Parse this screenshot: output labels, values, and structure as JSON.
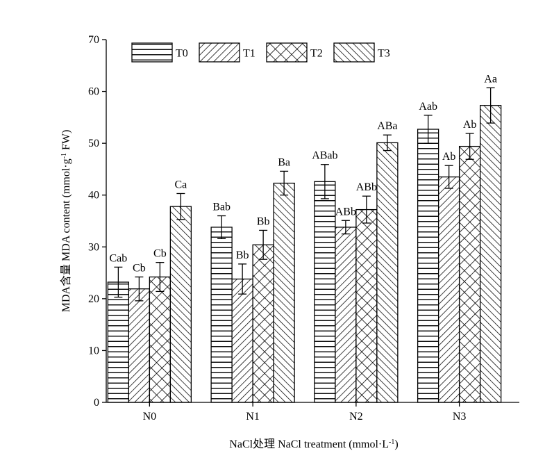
{
  "chart_data": {
    "type": "bar",
    "categories": [
      "N0",
      "N1",
      "N2",
      "N3"
    ],
    "series": [
      {
        "name": "T0",
        "pattern": "horizontal",
        "values": [
          23.2,
          33.8,
          42.6,
          52.7
        ],
        "errors": [
          2.9,
          2.2,
          3.3,
          2.7
        ],
        "labels": [
          "Cab",
          "Bab",
          "ABab",
          "Aab"
        ]
      },
      {
        "name": "T1",
        "pattern": "diagonal-up",
        "values": [
          21.9,
          23.8,
          33.8,
          43.5
        ],
        "errors": [
          2.3,
          2.9,
          1.3,
          2.2
        ],
        "labels": [
          "Cb",
          "Bb",
          "ABb",
          "Ab"
        ]
      },
      {
        "name": "T2",
        "pattern": "crosshatch",
        "values": [
          24.2,
          30.4,
          37.2,
          49.4
        ],
        "errors": [
          2.8,
          2.8,
          2.6,
          2.5
        ],
        "labels": [
          "Cb",
          "Bb",
          "ABb",
          "Ab"
        ]
      },
      {
        "name": "T3",
        "pattern": "diagonal-down",
        "values": [
          37.8,
          42.3,
          50.1,
          57.3
        ],
        "errors": [
          2.5,
          2.3,
          1.5,
          3.4
        ],
        "labels": [
          "Ca",
          "Ba",
          "ABa",
          "Aa"
        ]
      }
    ],
    "ylim": [
      0,
      70
    ],
    "yticks": [
      0,
      10,
      20,
      30,
      40,
      50,
      60,
      70
    ],
    "ylabel_parts": [
      "MDA含量 MDA content (mmol·g",
      "-1",
      " FW)"
    ],
    "xlabel_parts": [
      "NaCl处理 NaCl treatment (mmol·L",
      "-1",
      ")"
    ],
    "legend_position": "top-left",
    "grid": false
  }
}
